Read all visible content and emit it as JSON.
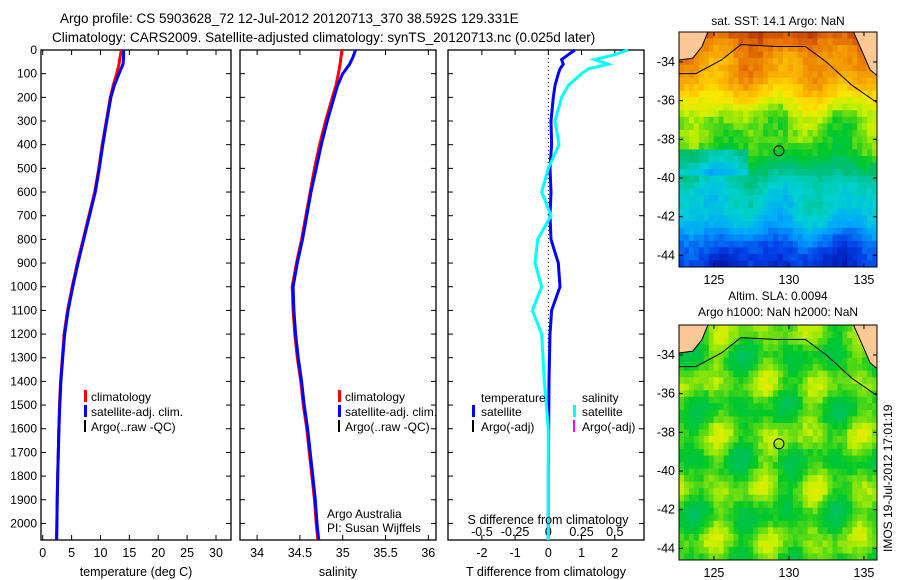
{
  "title_line1": "Argo profile: CS 5903628_72 12-Jul-2012 20120713_370 38.592S 129.331E",
  "title_line2": "Climatology: CARS2009. Satellite-adjusted climatology: synTS_20120713.nc (0.025d later)",
  "timestamp": "IMOS 19-Jul-2012 17:01:19",
  "colors": {
    "climatology": "#ff0000",
    "satellite": "#0000ff",
    "argo": "#000000",
    "sal_satellite": "#00ffff",
    "sal_argo": "#ff00ff",
    "land": "#fcc896"
  },
  "chart_data": [
    {
      "type": "line",
      "xlabel": "temperature (deg C)",
      "xlim": [
        -0.3,
        32.6
      ],
      "ylim": [
        0,
        2070
      ],
      "xticks": [
        0,
        5,
        10,
        15,
        20,
        25,
        30
      ],
      "yticks": [
        0,
        100,
        200,
        300,
        400,
        500,
        600,
        700,
        800,
        900,
        1000,
        1100,
        1200,
        1300,
        1400,
        1500,
        1600,
        1700,
        1800,
        1900,
        2000
      ],
      "legend": [
        "climatology",
        "satellite-adj. clim.",
        "Argo(..raw -QC)"
      ],
      "depth": [
        0,
        30,
        60,
        100,
        150,
        200,
        300,
        400,
        500,
        600,
        700,
        800,
        900,
        1000,
        1100,
        1200,
        1300,
        1400,
        1500,
        1600,
        1700,
        1800,
        1900,
        2000,
        2070
      ],
      "series": [
        {
          "name": "climatology",
          "values": [
            13.6,
            13.4,
            13.2,
            12.8,
            12.2,
            11.7,
            11.0,
            10.3,
            9.7,
            9.0,
            8.0,
            7.0,
            6.0,
            5.1,
            4.3,
            3.7,
            3.4,
            3.1,
            2.9,
            2.8,
            2.7,
            2.6,
            2.5,
            2.45,
            2.4
          ]
        },
        {
          "name": "satellite-adj. clim.",
          "values": [
            14.0,
            14.0,
            13.9,
            13.2,
            12.4,
            11.8,
            11.1,
            10.4,
            9.8,
            9.1,
            8.1,
            7.1,
            6.1,
            5.2,
            4.4,
            3.8,
            3.45,
            3.15,
            2.95,
            2.8,
            2.7,
            2.6,
            2.5,
            2.45,
            2.4
          ]
        }
      ]
    },
    {
      "type": "line",
      "xlabel": "salinity",
      "xlim": [
        33.8,
        36.09
      ],
      "ylim": [
        0,
        2070
      ],
      "xticks": [
        34,
        34.5,
        35,
        35.5,
        36
      ],
      "legend": [
        "climatology",
        "satellite-adj. clim.",
        "Argo(..raw -QC)"
      ],
      "annotation": [
        "Argo Australia",
        "PI: Susan Wijffels"
      ],
      "depth": [
        0,
        30,
        60,
        100,
        150,
        200,
        300,
        400,
        500,
        600,
        700,
        800,
        900,
        1000,
        1100,
        1200,
        1300,
        1400,
        1500,
        1600,
        1700,
        1800,
        1900,
        2000,
        2070
      ],
      "series": [
        {
          "name": "climatology",
          "values": [
            34.99,
            34.98,
            34.97,
            34.95,
            34.92,
            34.88,
            34.8,
            34.73,
            34.67,
            34.62,
            34.57,
            34.52,
            34.46,
            34.41,
            34.42,
            34.44,
            34.47,
            34.51,
            34.54,
            34.58,
            34.61,
            34.64,
            34.67,
            34.69,
            34.71
          ]
        },
        {
          "name": "satellite-adj. clim.",
          "values": [
            35.15,
            35.12,
            35.08,
            35.0,
            34.94,
            34.9,
            34.82,
            34.75,
            34.69,
            34.63,
            34.58,
            34.53,
            34.47,
            34.42,
            34.43,
            34.45,
            34.48,
            34.52,
            34.55,
            34.59,
            34.62,
            34.65,
            34.68,
            34.7,
            34.72
          ]
        }
      ]
    },
    {
      "type": "line",
      "xlabel": "T difference from climatology",
      "x2label": "S difference from climatology",
      "xlim": [
        -3.02,
        2.88
      ],
      "ylim": [
        0,
        2070
      ],
      "xticks": [
        -2,
        -1,
        0,
        1,
        2
      ],
      "x2ticks": [
        "-0.5",
        "-0.25",
        "0",
        "0.25",
        "0.5"
      ],
      "legend_titles": [
        "temperature",
        "salinity"
      ],
      "legend": [
        "satellite",
        "Argo(-adj)",
        "satellite",
        "Argo(-adj)"
      ],
      "depth": [
        0,
        20,
        40,
        60,
        80,
        100,
        150,
        200,
        300,
        400,
        500,
        600,
        700,
        800,
        900,
        1000,
        1100,
        1200,
        1400,
        1600,
        1800,
        2000,
        2070
      ],
      "series": [
        {
          "name": "temperature satellite",
          "values": [
            0.8,
            0.6,
            0.4,
            0.45,
            0.35,
            0.3,
            0.2,
            0.15,
            0.08,
            0.1,
            0.05,
            0.08,
            0.05,
            0.08,
            0.3,
            0.35,
            0.1,
            0.05,
            0.02,
            0.01,
            0.0,
            0.0,
            0.0
          ]
        },
        {
          "name": "salinity satellite",
          "values": [
            0.6,
            0.5,
            0.35,
            0.45,
            0.3,
            0.25,
            0.15,
            0.1,
            0.05,
            0.08,
            0.0,
            -0.05,
            0.02,
            -0.08,
            -0.1,
            -0.05,
            -0.12,
            -0.05,
            -0.03,
            0.0,
            0.0,
            0.0,
            0.0
          ]
        }
      ]
    },
    {
      "type": "heatmap",
      "title": "sat. SST: 14.1 Argo: NaN",
      "xlim": [
        122.67,
        135.87
      ],
      "ylim": [
        -44.6,
        -32.45
      ],
      "xticks": [
        125,
        130,
        135
      ],
      "yticks": [
        -34,
        -36,
        -38,
        -40,
        -42,
        -44
      ],
      "marker": {
        "lon": 129.331,
        "lat": -38.592
      }
    },
    {
      "type": "heatmap",
      "title_line1": "Altim. SLA: 0.0094",
      "title_line2": "Argo h1000: NaN h2000: NaN",
      "xlim": [
        122.67,
        135.87
      ],
      "ylim": [
        -44.6,
        -32.45
      ],
      "xticks": [
        125,
        130,
        135
      ],
      "yticks": [
        -34,
        -36,
        -38,
        -40,
        -42,
        -44
      ],
      "marker": {
        "lon": 129.331,
        "lat": -38.592
      }
    }
  ]
}
